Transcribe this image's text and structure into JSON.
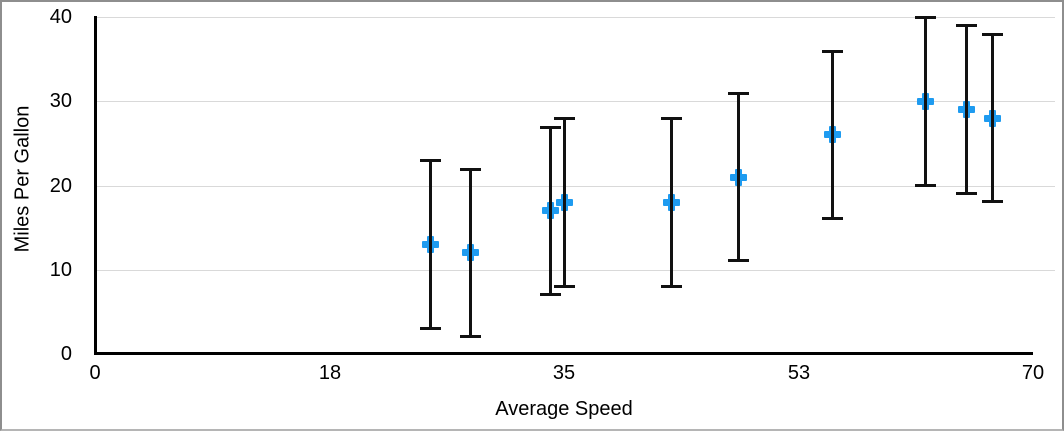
{
  "chart_data": {
    "type": "scatter",
    "title": "",
    "xlabel": "Average Speed",
    "ylabel": "Miles Per Gallon",
    "xlim": [
      0,
      70
    ],
    "ylim": [
      0,
      40
    ],
    "x_ticks": [
      {
        "value": 0,
        "label": "0"
      },
      {
        "value": 17.5,
        "label": "18"
      },
      {
        "value": 35,
        "label": "35"
      },
      {
        "value": 52.5,
        "label": "53"
      },
      {
        "value": 70,
        "label": "70"
      }
    ],
    "y_ticks": [
      {
        "value": 0,
        "label": "0"
      },
      {
        "value": 10,
        "label": "10"
      },
      {
        "value": 20,
        "label": "20"
      },
      {
        "value": 30,
        "label": "30"
      },
      {
        "value": 40,
        "label": "40"
      }
    ],
    "grid": "horizontal gridlines at y = 10, 20, 30, 40",
    "legend": "none",
    "marker": {
      "shape": "plus",
      "color": "#1e9bf0"
    },
    "error_bars": {
      "axis": "y",
      "symmetric": true,
      "style": "line with caps"
    },
    "points": [
      {
        "x": 25,
        "y": 13,
        "error_plus": 10,
        "error_minus": 10
      },
      {
        "x": 28,
        "y": 12,
        "error_plus": 10,
        "error_minus": 10
      },
      {
        "x": 34,
        "y": 17,
        "error_plus": 10,
        "error_minus": 10
      },
      {
        "x": 35,
        "y": 18,
        "error_plus": 10,
        "error_minus": 10
      },
      {
        "x": 43,
        "y": 18,
        "error_plus": 10,
        "error_minus": 10
      },
      {
        "x": 48,
        "y": 21,
        "error_plus": 10,
        "error_minus": 10
      },
      {
        "x": 55,
        "y": 26,
        "error_plus": 10,
        "error_minus": 10
      },
      {
        "x": 62,
        "y": 30,
        "error_plus": 10,
        "error_minus": 10
      },
      {
        "x": 65,
        "y": 29,
        "error_plus": 10,
        "error_minus": 10
      },
      {
        "x": 67,
        "y": 28,
        "error_plus": 10,
        "error_minus": 10
      }
    ],
    "colors": {
      "marker": "#1e9bf0",
      "axis": "#000000",
      "gridline": "#d9d9d9",
      "error_bar": "#111111",
      "text": "#000000",
      "background": "#ffffff",
      "frame_border": "#8e8e8e"
    }
  }
}
